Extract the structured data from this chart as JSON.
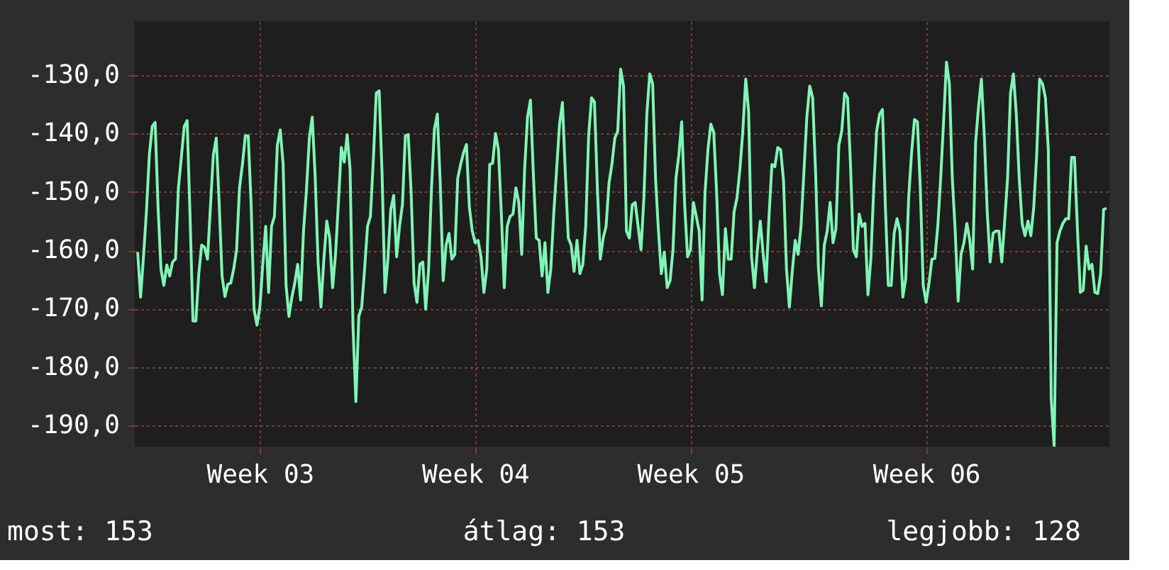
{
  "chart_data": {
    "type": "line",
    "categories": [
      null,
      null,
      null,
      null,
      null,
      null,
      null,
      null,
      null,
      null,
      null,
      null,
      null,
      null,
      null,
      null,
      null,
      null,
      null,
      null,
      null,
      null,
      null,
      null,
      null,
      null,
      null,
      null,
      null,
      null,
      null,
      null,
      null,
      null,
      null,
      null,
      null,
      null,
      null,
      null,
      null,
      null,
      "Week 03",
      null,
      null,
      null,
      null,
      null,
      null,
      null,
      null,
      null,
      null,
      null,
      null,
      null,
      null,
      null,
      null,
      null,
      null,
      null,
      null,
      null,
      null,
      null,
      null,
      null,
      null,
      null,
      null,
      null,
      null,
      null,
      null,
      null,
      null,
      null,
      null,
      null,
      null,
      null,
      null,
      null,
      null,
      null,
      null,
      null,
      null,
      null,
      null,
      null,
      null,
      null,
      null,
      null,
      null,
      null,
      null,
      null,
      null,
      null,
      null,
      null,
      null,
      null,
      null,
      null,
      null,
      null,
      null,
      null,
      null,
      null,
      null,
      null,
      "Week 04",
      null,
      null,
      null,
      null,
      null,
      null,
      null,
      null,
      null,
      null,
      null,
      null,
      null,
      null,
      null,
      null,
      null,
      null,
      null,
      null,
      null,
      null,
      null,
      null,
      null,
      null,
      null,
      null,
      null,
      null,
      null,
      null,
      null,
      null,
      null,
      null,
      null,
      null,
      null,
      null,
      null,
      null,
      null,
      null,
      null,
      null,
      null,
      null,
      null,
      null,
      null,
      null,
      null,
      null,
      null,
      null,
      null,
      null,
      null,
      null,
      null,
      null,
      null,
      null,
      null,
      null,
      null,
      null,
      null,
      null,
      null,
      null,
      null,
      "Week 05",
      null,
      null,
      null,
      null,
      null,
      null,
      null,
      null,
      null,
      null,
      null,
      null,
      null,
      null,
      null,
      null,
      null,
      null,
      null,
      null,
      null,
      null,
      null,
      null,
      null,
      null,
      null,
      null,
      null,
      null,
      null,
      null,
      null,
      null,
      null,
      null,
      null,
      null,
      null,
      null,
      null,
      null,
      null,
      null,
      null,
      null,
      null,
      null,
      null,
      null,
      null,
      null,
      null,
      null,
      null,
      null,
      null,
      null,
      null,
      null,
      null,
      null,
      null,
      null,
      null,
      null,
      null,
      null,
      null,
      null,
      null,
      null,
      null,
      null,
      null,
      null,
      null,
      null,
      null,
      null,
      "Week 06",
      null,
      null,
      null,
      null,
      null,
      null,
      null,
      null,
      null,
      null,
      null,
      null,
      null,
      null,
      null,
      null,
      null,
      null,
      null,
      null,
      null,
      null,
      null,
      null,
      null,
      null,
      null,
      null,
      null,
      null,
      null,
      null,
      null,
      null,
      null,
      null,
      null,
      null,
      null,
      null,
      null,
      null,
      null,
      null,
      null,
      null,
      null,
      null,
      null,
      null,
      null,
      null,
      null,
      null,
      null,
      null,
      null,
      null,
      null,
      null,
      null,
      null
    ],
    "series": [
      {
        "color": "#7ff5b5",
        "values": [
          -160.3,
          -168.0,
          -161.1,
          -153.4,
          -143.7,
          -138.8,
          -138.1,
          -152.6,
          -163.2,
          -166.0,
          -162.5,
          -164.4,
          -162.0,
          -161.5,
          -149.3,
          -144.1,
          -138.8,
          -137.8,
          -154.2,
          -172.1,
          -172.1,
          -164.0,
          -159.1,
          -159.5,
          -161.5,
          -152.6,
          -143.7,
          -140.8,
          -151.8,
          -164.4,
          -167.9,
          -165.8,
          -165.6,
          -163.2,
          -159.9,
          -149.3,
          -145.3,
          -140.4,
          -140.4,
          -152.2,
          -170.1,
          -172.8,
          -169.7,
          -162.4,
          -155.9,
          -167.2,
          -155.9,
          -154.2,
          -142.0,
          -139.4,
          -145.3,
          -166.0,
          -171.3,
          -168.0,
          -165.6,
          -162.4,
          -168.5,
          -156.7,
          -149.8,
          -140.8,
          -137.2,
          -147.3,
          -162.0,
          -169.7,
          -161.5,
          -155.0,
          -157.9,
          -166.4,
          -160.7,
          -151.8,
          -142.4,
          -144.9,
          -140.2,
          -146.1,
          -172.9,
          -185.9,
          -171.3,
          -169.7,
          -163.2,
          -155.9,
          -154.2,
          -144.5,
          -133.1,
          -132.7,
          -146.9,
          -167.2,
          -161.5,
          -153.0,
          -150.6,
          -161.1,
          -155.9,
          -152.2,
          -140.4,
          -140.2,
          -150.2,
          -165.6,
          -168.9,
          -162.4,
          -162.0,
          -170.1,
          -163.2,
          -149.3,
          -139.2,
          -136.7,
          -148.5,
          -165.2,
          -159.1,
          -157.1,
          -161.5,
          -160.7,
          -147.7,
          -145.3,
          -143.3,
          -141.9,
          -152.6,
          -156.7,
          -158.7,
          -158.3,
          -161.1,
          -167.2,
          -163.2,
          -145.3,
          -145.1,
          -140.0,
          -142.8,
          -153.8,
          -166.4,
          -155.9,
          -154.2,
          -153.8,
          -149.3,
          -151.8,
          -160.7,
          -146.1,
          -137.2,
          -134.3,
          -146.9,
          -157.9,
          -158.3,
          -164.4,
          -158.7,
          -167.2,
          -163.2,
          -153.8,
          -146.1,
          -138.4,
          -134.7,
          -146.9,
          -157.9,
          -159.1,
          -163.6,
          -158.3,
          -164.0,
          -162.4,
          -155.9,
          -140.4,
          -133.9,
          -134.6,
          -149.3,
          -161.5,
          -157.9,
          -155.9,
          -148.5,
          -145.3,
          -140.8,
          -139.6,
          -129.0,
          -131.9,
          -156.7,
          -157.9,
          -152.2,
          -151.8,
          -155.9,
          -159.9,
          -151.0,
          -136.7,
          -129.8,
          -131.5,
          -147.7,
          -156.7,
          -164.0,
          -160.3,
          -166.4,
          -165.2,
          -159.9,
          -147.7,
          -143.7,
          -138.0,
          -152.2,
          -161.1,
          -159.9,
          -151.8,
          -154.2,
          -156.7,
          -168.5,
          -150.2,
          -142.8,
          -138.4,
          -139.8,
          -150.2,
          -164.0,
          -167.6,
          -156.3,
          -161.5,
          -161.5,
          -153.4,
          -151.0,
          -146.1,
          -139.6,
          -130.7,
          -136.3,
          -161.1,
          -166.4,
          -159.9,
          -155.0,
          -160.7,
          -165.4,
          -154.2,
          -145.3,
          -145.7,
          -142.4,
          -142.8,
          -148.1,
          -163.2,
          -169.7,
          -163.6,
          -158.3,
          -160.7,
          -155.9,
          -146.5,
          -137.2,
          -131.9,
          -133.9,
          -146.5,
          -163.2,
          -169.5,
          -159.1,
          -156.7,
          -151.8,
          -158.7,
          -156.3,
          -142.0,
          -139.6,
          -133.1,
          -133.9,
          -145.3,
          -159.9,
          -161.1,
          -153.8,
          -155.9,
          -155.4,
          -167.6,
          -161.5,
          -149.3,
          -139.6,
          -136.7,
          -135.9,
          -152.6,
          -166.0,
          -166.0,
          -157.1,
          -154.6,
          -156.7,
          -168.0,
          -164.8,
          -151.0,
          -143.3,
          -137.6,
          -138.0,
          -149.3,
          -166.0,
          -168.9,
          -165.6,
          -161.5,
          -161.4,
          -155.9,
          -147.7,
          -138.0,
          -127.8,
          -131.5,
          -147.7,
          -156.7,
          -168.7,
          -160.7,
          -158.7,
          -155.4,
          -158.3,
          -163.2,
          -141.6,
          -135.5,
          -130.7,
          -140.4,
          -153.4,
          -162.0,
          -157.1,
          -156.7,
          -156.7,
          -162.0,
          -155.0,
          -147.7,
          -133.1,
          -129.8,
          -136.7,
          -147.7,
          -155.4,
          -157.5,
          -155.0,
          -157.5,
          -152.6,
          -143.7,
          -130.7,
          -131.5,
          -133.9,
          -142.8,
          -185.5,
          -193.5,
          -158.7,
          -156.7,
          -155.4,
          -154.6,
          -154.6,
          -144.1,
          -144.1,
          -156.3,
          -167.2,
          -166.8,
          -159.3,
          -163.2,
          -162.4,
          -167.2,
          -167.4,
          -164.0,
          -153.0,
          -152.8
        ]
      }
    ],
    "ylim": [
      -193.6,
      -120.8
    ],
    "yticks": [
      {
        "value": -190,
        "label": "-190,0"
      },
      {
        "value": -180,
        "label": "-180,0"
      },
      {
        "value": -170,
        "label": "-170,0"
      },
      {
        "value": -160,
        "label": "-160,0"
      },
      {
        "value": -150,
        "label": "-150,0"
      },
      {
        "value": -140,
        "label": "-140,0"
      },
      {
        "value": -130,
        "label": "-130,0"
      }
    ],
    "grid": true,
    "annotations": [
      "most: 153",
      "átlag: 153",
      "legjobb: 128"
    ]
  }
}
